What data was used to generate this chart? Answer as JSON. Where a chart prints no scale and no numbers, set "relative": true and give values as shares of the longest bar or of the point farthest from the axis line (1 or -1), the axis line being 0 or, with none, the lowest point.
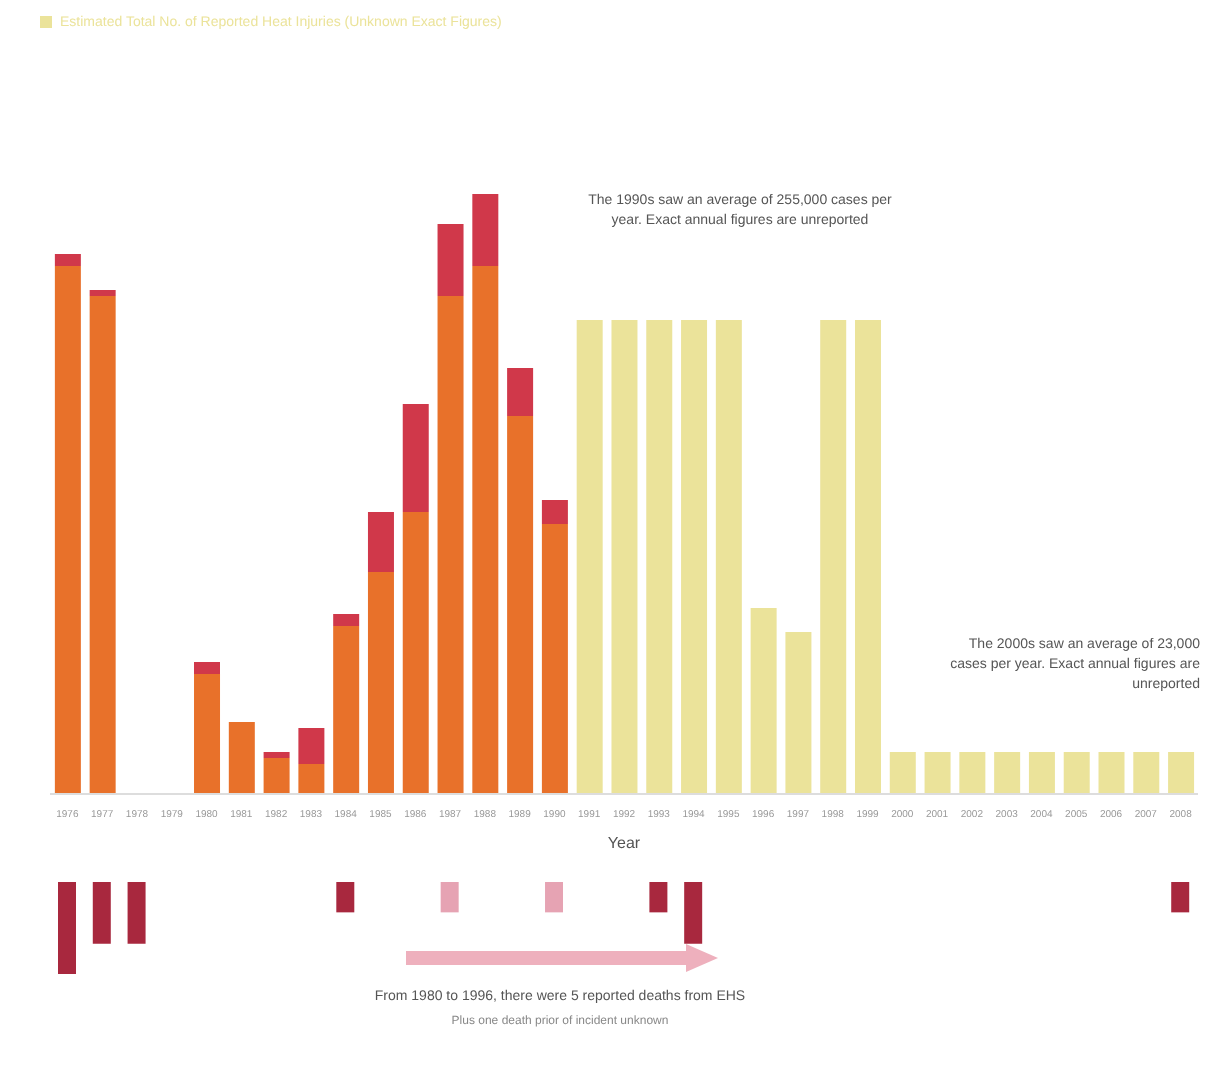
{
  "chart_data": [
    {
      "type": "bar",
      "relative": true,
      "stacked": true,
      "legend": "top left",
      "xlabel": "Year",
      "categories": [
        "1976",
        "1977",
        "1978",
        "1979",
        "1980",
        "1981",
        "1982",
        "1983",
        "1984",
        "1985",
        "1986",
        "1987",
        "1988",
        "1989",
        "1990",
        "1991",
        "1992",
        "1993",
        "1994",
        "1995",
        "1996",
        "1997",
        "1998",
        "1999",
        "2000",
        "2001",
        "2002",
        "2003",
        "2004",
        "2005",
        "2006",
        "2007",
        "2008"
      ],
      "series": [
        {
          "color": "#e8712a",
          "values": [
            0.88,
            0.83,
            null,
            null,
            0.2,
            0.12,
            0.06,
            0.05,
            0.28,
            0.37,
            0.47,
            0.83,
            0.88,
            0.63,
            0.45,
            null,
            null,
            null,
            null,
            null,
            null,
            null,
            null,
            null,
            null,
            null,
            null,
            null,
            null,
            null,
            null,
            null,
            null
          ]
        },
        {
          "color": "#d0384a",
          "values": [
            0.02,
            0.01,
            null,
            null,
            0.02,
            0,
            0.01,
            0.06,
            0.02,
            0.1,
            0.18,
            0.12,
            0.12,
            0.08,
            0.04,
            null,
            null,
            null,
            null,
            null,
            null,
            null,
            null,
            null,
            null,
            null,
            null,
            null,
            null,
            null,
            null,
            null,
            null
          ]
        },
        {
          "name": "Estimated Total No. of Reported Heat Injuries (Unknown Exact Figures)",
          "color": "#ebe39a",
          "values": [
            null,
            null,
            null,
            null,
            null,
            null,
            null,
            null,
            null,
            null,
            null,
            null,
            null,
            null,
            null,
            0.79,
            0.79,
            0.79,
            0.79,
            0.79,
            0.31,
            0.27,
            0.79,
            0.79,
            0.07,
            0.07,
            0.07,
            0.07,
            0.07,
            0.07,
            0.07,
            0.07,
            0.07
          ]
        }
      ],
      "annotations": [
        "The 1990s saw an average of 255,000 cases per year. Exact annual figures are unreported",
        "The 2000s saw an average of 23,000 cases per year. Exact annual figures are unreported"
      ]
    },
    {
      "type": "bar",
      "tick_labels": false,
      "relative": true,
      "categories": [
        "1976",
        "1977",
        "1978",
        "1979",
        "1980",
        "1981",
        "1982",
        "1983",
        "1984",
        "1985",
        "1986",
        "1987",
        "1988",
        "1989",
        "1990",
        "1991",
        "1992",
        "1993",
        "1994",
        "1995",
        "1996",
        "1997",
        "1998",
        "1999",
        "2000",
        "2001",
        "2002",
        "2003",
        "2004",
        "2005",
        "2006",
        "2007",
        "2008"
      ],
      "values": [
        -1,
        -0.67,
        -0.67,
        null,
        null,
        null,
        null,
        null,
        -0.33,
        null,
        null,
        -0.33,
        null,
        null,
        -0.33,
        null,
        null,
        -0.33,
        -0.67,
        null,
        null,
        null,
        null,
        null,
        null,
        null,
        null,
        null,
        null,
        null,
        null,
        null,
        -0.33
      ],
      "colors": [
        "#a8283e",
        "#a8283e",
        "#a8283e",
        null,
        null,
        null,
        null,
        null,
        "#a8283e",
        null,
        null,
        "#e6a3b3",
        null,
        null,
        "#e6a3b3",
        null,
        null,
        "#a8283e",
        "#a8283e",
        null,
        null,
        null,
        null,
        null,
        null,
        null,
        null,
        null,
        null,
        null,
        null,
        null,
        "#a8283e"
      ],
      "annotations": [
        "From 1980 to 1996, there were 5 reported deaths from EHS",
        "Plus one death prior of incident unknown"
      ]
    }
  ]
}
